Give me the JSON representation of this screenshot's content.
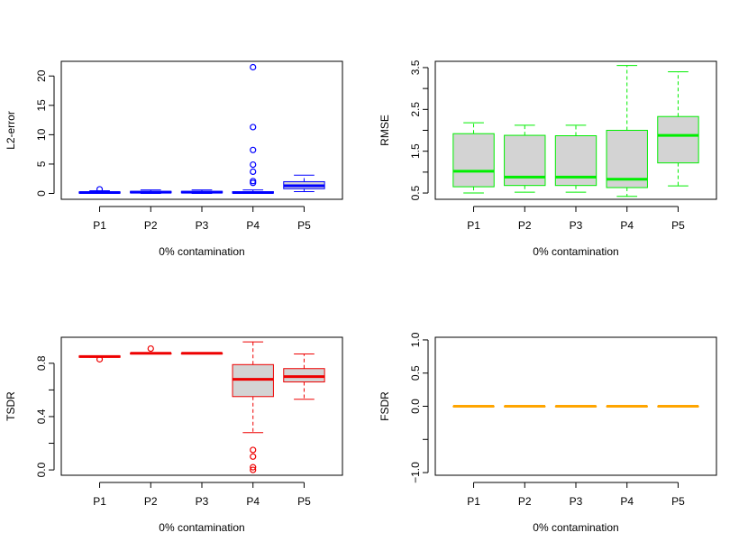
{
  "chart_data": [
    {
      "type": "boxplot",
      "ylabel": "L2-error",
      "xlabel": "0% contamination",
      "categories": [
        "P1",
        "P2",
        "P3",
        "P4",
        "P5"
      ],
      "ylim": [
        -1,
        22.5
      ],
      "yticks": [
        0,
        5,
        10,
        15,
        20
      ],
      "ytick_labels": [
        "0",
        "5",
        "10",
        "15",
        "20"
      ],
      "color": "#0000ff",
      "fill": "#d3d3d3",
      "boxes": [
        {
          "label": "P1",
          "lower_whisker": 0.0,
          "q1": 0.05,
          "median": 0.15,
          "q3": 0.25,
          "upper_whisker": 0.45,
          "outliers": [
            0.7
          ]
        },
        {
          "label": "P2",
          "lower_whisker": 0.0,
          "q1": 0.1,
          "median": 0.2,
          "q3": 0.35,
          "upper_whisker": 0.6,
          "outliers": []
        },
        {
          "label": "P3",
          "lower_whisker": 0.0,
          "q1": 0.1,
          "median": 0.2,
          "q3": 0.35,
          "upper_whisker": 0.6,
          "outliers": []
        },
        {
          "label": "P4",
          "lower_whisker": 0.0,
          "q1": 0.05,
          "median": 0.15,
          "q3": 0.3,
          "upper_whisker": 0.6,
          "outliers": [
            1.8,
            2.1,
            3.7,
            4.9,
            7.4,
            11.3,
            21.5
          ]
        },
        {
          "label": "P5",
          "lower_whisker": 0.3,
          "q1": 0.8,
          "median": 1.3,
          "q3": 2.0,
          "upper_whisker": 3.1,
          "outliers": []
        }
      ]
    },
    {
      "type": "boxplot",
      "ylabel": "RMSE",
      "xlabel": "0% contamination",
      "categories": [
        "P1",
        "P2",
        "P3",
        "P4",
        "P5"
      ],
      "ylim": [
        0.35,
        3.65
      ],
      "yticks": [
        0.5,
        1.0,
        1.5,
        2.0,
        2.5,
        3.0,
        3.5
      ],
      "ytick_labels": [
        "0.5",
        "",
        "1.5",
        "",
        "2.5",
        "",
        "3.5"
      ],
      "color": "#00ee00",
      "fill": "#d3d3d3",
      "boxes": [
        {
          "label": "P1",
          "lower_whisker": 0.5,
          "q1": 0.65,
          "median": 1.02,
          "q3": 1.92,
          "upper_whisker": 2.18,
          "outliers": []
        },
        {
          "label": "P2",
          "lower_whisker": 0.52,
          "q1": 0.68,
          "median": 0.88,
          "q3": 1.88,
          "upper_whisker": 2.12,
          "outliers": []
        },
        {
          "label": "P3",
          "lower_whisker": 0.52,
          "q1": 0.68,
          "median": 0.88,
          "q3": 1.87,
          "upper_whisker": 2.12,
          "outliers": []
        },
        {
          "label": "P4",
          "lower_whisker": 0.42,
          "q1": 0.63,
          "median": 0.83,
          "q3": 2.0,
          "upper_whisker": 3.55,
          "outliers": []
        },
        {
          "label": "P5",
          "lower_whisker": 0.67,
          "q1": 1.22,
          "median": 1.88,
          "q3": 2.33,
          "upper_whisker": 3.4,
          "outliers": []
        }
      ]
    },
    {
      "type": "boxplot",
      "ylabel": "TSDR",
      "xlabel": "0% contamination",
      "categories": [
        "P1",
        "P2",
        "P3",
        "P4",
        "P5"
      ],
      "ylim": [
        -0.04,
        0.995
      ],
      "yticks": [
        0.0,
        0.2,
        0.4,
        0.6,
        0.8
      ],
      "ytick_labels": [
        "0.0",
        "",
        "0.4",
        "",
        "0.8"
      ],
      "color": "#ee0000",
      "fill": "#d3d3d3",
      "boxes": [
        {
          "label": "P1",
          "lower_whisker": 0.845,
          "q1": 0.845,
          "median": 0.85,
          "q3": 0.855,
          "upper_whisker": 0.855,
          "outliers": [
            0.83
          ]
        },
        {
          "label": "P2",
          "lower_whisker": 0.87,
          "q1": 0.87,
          "median": 0.875,
          "q3": 0.875,
          "upper_whisker": 0.875,
          "outliers": [
            0.91
          ]
        },
        {
          "label": "P3",
          "lower_whisker": 0.87,
          "q1": 0.87,
          "median": 0.875,
          "q3": 0.875,
          "upper_whisker": 0.875,
          "outliers": []
        },
        {
          "label": "P4",
          "lower_whisker": 0.28,
          "q1": 0.55,
          "median": 0.68,
          "q3": 0.79,
          "upper_whisker": 0.96,
          "outliers": [
            0.0,
            0.02,
            0.1,
            0.15
          ]
        },
        {
          "label": "P5",
          "lower_whisker": 0.53,
          "q1": 0.66,
          "median": 0.7,
          "q3": 0.76,
          "upper_whisker": 0.87,
          "outliers": []
        }
      ]
    },
    {
      "type": "boxplot",
      "ylabel": "FSDR",
      "xlabel": "0% contamination",
      "categories": [
        "P1",
        "P2",
        "P3",
        "P4",
        "P5"
      ],
      "ylim": [
        -1.04,
        1.04
      ],
      "yticks": [
        -1.0,
        -0.5,
        0.0,
        0.5,
        1.0
      ],
      "ytick_labels": [
        "−1.0",
        "",
        "0.0",
        "0.5",
        "1.0"
      ],
      "color": "#ffa500",
      "fill": "#d3d3d3",
      "boxes": [
        {
          "label": "P1",
          "lower_whisker": 0,
          "q1": 0,
          "median": 0,
          "q3": 0,
          "upper_whisker": 0,
          "outliers": []
        },
        {
          "label": "P2",
          "lower_whisker": 0,
          "q1": 0,
          "median": 0,
          "q3": 0,
          "upper_whisker": 0,
          "outliers": []
        },
        {
          "label": "P3",
          "lower_whisker": 0,
          "q1": 0,
          "median": 0,
          "q3": 0,
          "upper_whisker": 0,
          "outliers": []
        },
        {
          "label": "P4",
          "lower_whisker": 0,
          "q1": 0,
          "median": 0,
          "q3": 0,
          "upper_whisker": 0,
          "outliers": []
        },
        {
          "label": "P5",
          "lower_whisker": 0,
          "q1": 0,
          "median": 0,
          "q3": 0,
          "upper_whisker": 0,
          "outliers": []
        }
      ]
    }
  ]
}
